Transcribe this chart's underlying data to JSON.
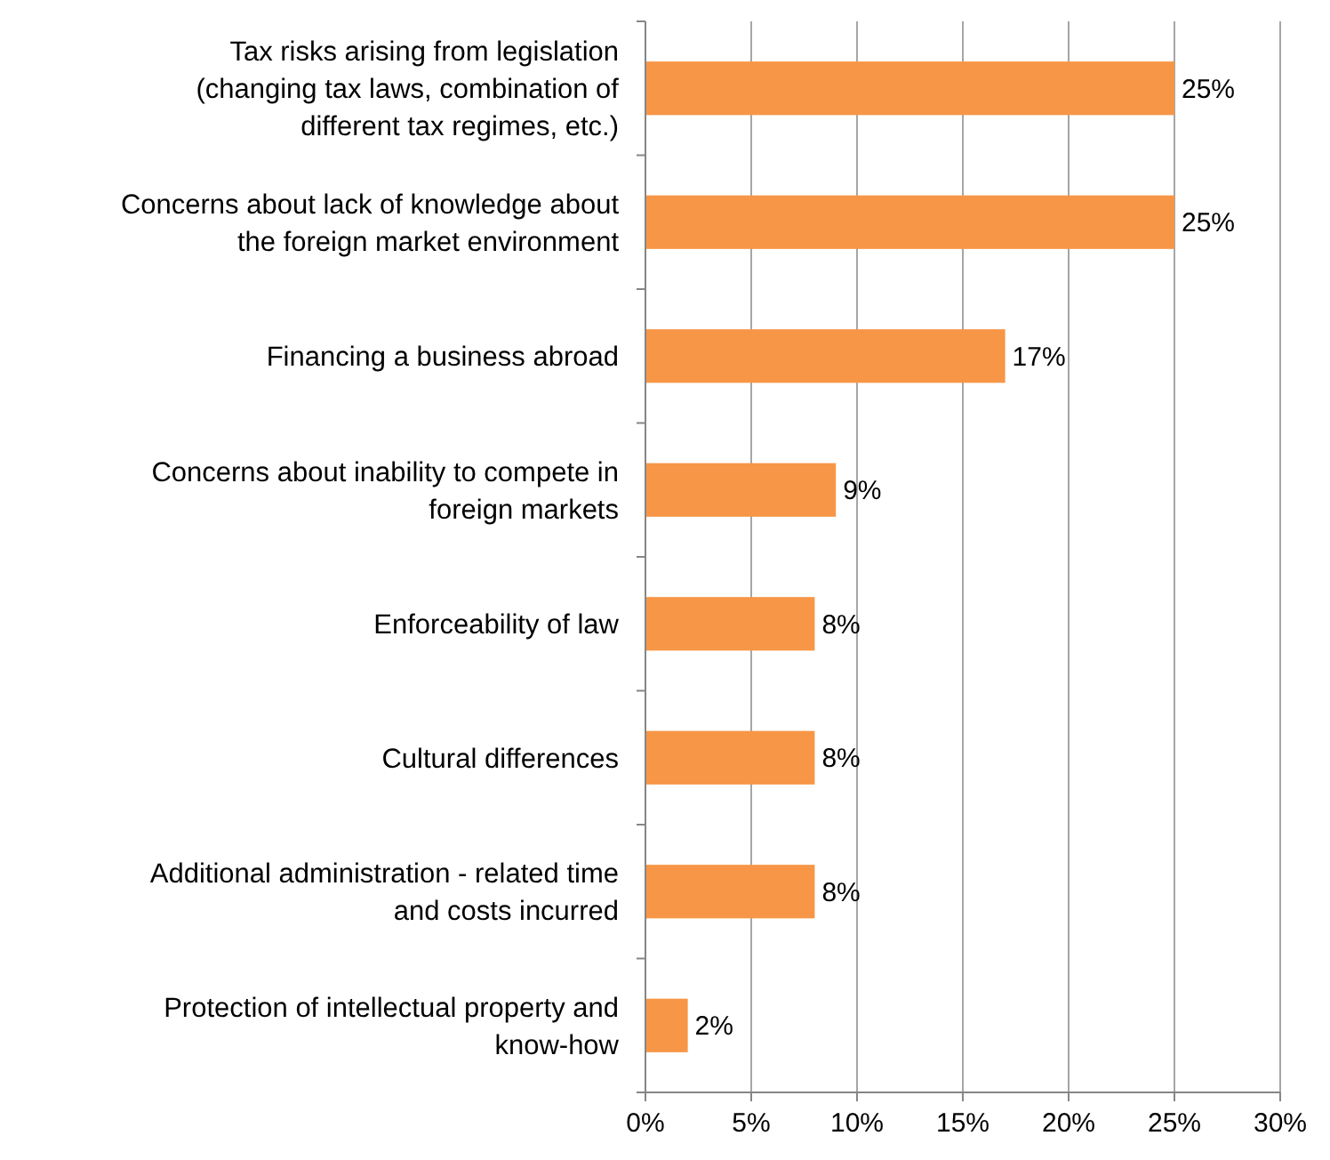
{
  "chart_data": {
    "type": "bar",
    "orientation": "horizontal",
    "categories": [
      "Tax risks arising from  legislation\n(changing tax laws, combination of\ndifferent tax regimes, etc.)",
      "Concerns about lack of knowledge about\nthe foreign market environment",
      "Financing  a business abroad",
      "Concerns about inability to compete in\nforeign markets",
      "Enforceability of law",
      "Cultural differences",
      "Additional administration - related time\nand costs incurred",
      "Protection of  intellectual property and\nknow-how"
    ],
    "values": [
      25,
      25,
      17,
      9,
      8,
      8,
      8,
      2
    ],
    "value_labels": [
      "25%",
      "25%",
      "17%",
      "9%",
      "8%",
      "8%",
      "8%",
      "2%"
    ],
    "color": "#f79646",
    "xlim": [
      0,
      30
    ],
    "xticks": [
      {
        "value": 0,
        "label": "0%"
      },
      {
        "value": 5,
        "label": "5%"
      },
      {
        "value": 10,
        "label": "10%"
      },
      {
        "value": 15,
        "label": "15%"
      },
      {
        "value": 20,
        "label": "20%"
      },
      {
        "value": 25,
        "label": "25%"
      },
      {
        "value": 30,
        "label": "30%"
      }
    ],
    "grid": "x"
  }
}
